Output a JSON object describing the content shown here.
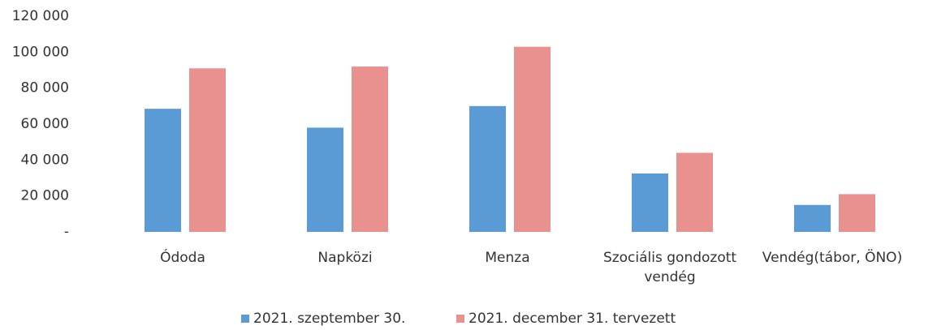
{
  "chart_data": {
    "type": "bar",
    "categories": [
      "Ódoda",
      "Napközi",
      "Menza",
      "Szociális gondozott vendég",
      "Vendég(tábor, ÖNO)"
    ],
    "series": [
      {
        "name": "2021. szeptember 30.",
        "color": "#5b9bd5",
        "values": [
          68500,
          58000,
          70000,
          32500,
          15000
        ]
      },
      {
        "name": "2021. december 31. tervezett",
        "color": "#e8918f",
        "values": [
          91000,
          92000,
          103000,
          44000,
          21000
        ]
      }
    ],
    "ylim": [
      0,
      120000
    ],
    "yticks": [
      {
        "value": 0,
        "label": "-"
      },
      {
        "value": 20000,
        "label": "20 000"
      },
      {
        "value": 40000,
        "label": "40 000"
      },
      {
        "value": 60000,
        "label": "60 000"
      },
      {
        "value": 80000,
        "label": "80 000"
      },
      {
        "value": 100000,
        "label": "100 000"
      },
      {
        "value": 120000,
        "label": "120 000"
      }
    ],
    "grid": false,
    "legend": "bottom"
  }
}
